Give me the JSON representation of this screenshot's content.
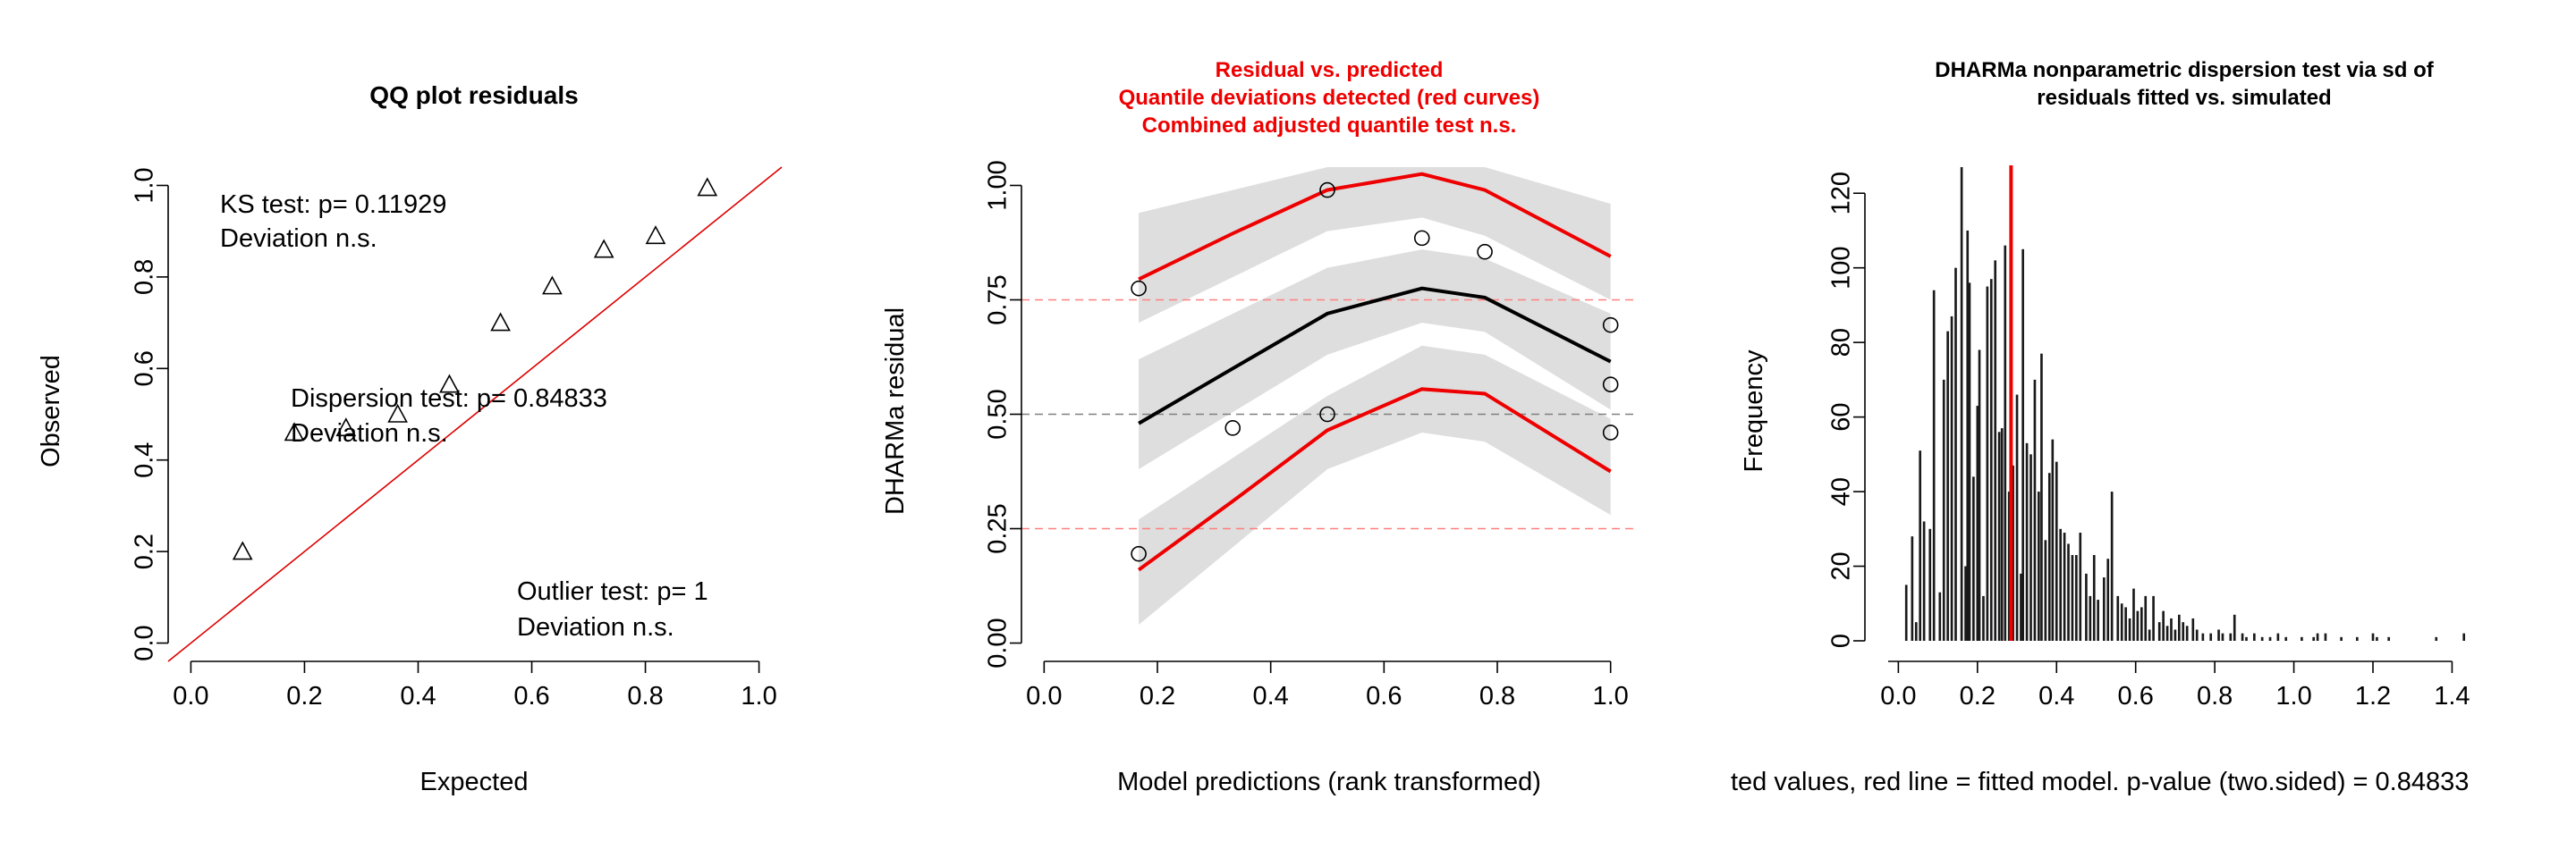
{
  "chart_data": [
    {
      "type": "scatter",
      "title": "QQ plot residuals",
      "xlabel": "Expected",
      "ylabel": "Observed",
      "xlim": [
        -0.04,
        1.04
      ],
      "ylim": [
        -0.04,
        1.04
      ],
      "xticks": [
        "0.0",
        "0.2",
        "0.4",
        "0.6",
        "0.8",
        "1.0"
      ],
      "yticks": [
        "0.0",
        "0.2",
        "0.4",
        "0.6",
        "0.8",
        "1.0"
      ],
      "points": [
        {
          "x": 0.091,
          "y": 0.2
        },
        {
          "x": 0.182,
          "y": 0.46
        },
        {
          "x": 0.273,
          "y": 0.47
        },
        {
          "x": 0.364,
          "y": 0.5
        },
        {
          "x": 0.455,
          "y": 0.565
        },
        {
          "x": 0.545,
          "y": 0.7
        },
        {
          "x": 0.636,
          "y": 0.78
        },
        {
          "x": 0.727,
          "y": 0.86
        },
        {
          "x": 0.818,
          "y": 0.89
        },
        {
          "x": 0.909,
          "y": 0.995
        }
      ],
      "reference_line": "y = x",
      "annotations": [
        {
          "lines": [
            "KS test: p= 0.11929",
            "Deviation  n.s."
          ]
        },
        {
          "lines": [
            "Dispersion test: p= 0.84833",
            "Deviation  n.s."
          ]
        },
        {
          "lines": [
            "Outlier test: p= 1",
            "Deviation  n.s."
          ]
        }
      ],
      "colors": {
        "points": "#000000",
        "line": "#dd0000"
      }
    },
    {
      "type": "line",
      "title_lines": [
        "Residual vs. predicted",
        "Quantile deviations detected (red curves)",
        "Combined adjusted quantile test n.s."
      ],
      "xlabel": "Model predictions (rank transformed)",
      "ylabel": "DHARMa residual",
      "xlim": [
        -0.04,
        1.04
      ],
      "ylim": [
        -0.04,
        1.04
      ],
      "xticks": [
        "0.0",
        "0.2",
        "0.4",
        "0.6",
        "0.8",
        "1.0"
      ],
      "yticks": [
        "0.00",
        "0.25",
        "0.50",
        "0.75",
        "1.00"
      ],
      "reference_lines": [
        0.25,
        0.5,
        0.75
      ],
      "x": [
        0.167,
        0.333,
        0.5,
        0.667,
        0.778,
        1.0
      ],
      "series": [
        {
          "values": [
            0.16,
            0.31,
            0.465,
            0.555,
            0.545,
            0.375
          ],
          "color": "#ee0000",
          "quantile": 0.25
        },
        {
          "values": [
            0.48,
            0.6,
            0.72,
            0.775,
            0.755,
            0.615
          ],
          "color": "#000000",
          "quantile": 0.5
        },
        {
          "values": [
            0.795,
            0.895,
            0.99,
            1.025,
            0.99,
            0.845
          ],
          "color": "#ee0000",
          "quantile": 0.75
        }
      ],
      "bands": [
        {
          "x": [
            0.167,
            0.5,
            0.667,
            0.778,
            1.0
          ],
          "lower": [
            0.04,
            0.38,
            0.46,
            0.44,
            0.28
          ],
          "upper": [
            0.27,
            0.54,
            0.65,
            0.63,
            0.49
          ]
        },
        {
          "x": [
            0.167,
            0.5,
            0.667,
            0.778,
            1.0
          ],
          "lower": [
            0.38,
            0.63,
            0.7,
            0.68,
            0.51
          ],
          "upper": [
            0.62,
            0.82,
            0.86,
            0.84,
            0.72
          ]
        },
        {
          "x": [
            0.167,
            0.5,
            0.667,
            0.778,
            1.0
          ],
          "lower": [
            0.7,
            0.9,
            0.93,
            0.89,
            0.75
          ],
          "upper": [
            0.94,
            1.12,
            1.12,
            1.1,
            0.96
          ]
        }
      ],
      "points": [
        {
          "x": 0.167,
          "y": 0.775
        },
        {
          "x": 0.167,
          "y": 0.195
        },
        {
          "x": 0.333,
          "y": 0.47
        },
        {
          "x": 0.5,
          "y": 0.99
        },
        {
          "x": 0.5,
          "y": 0.5
        },
        {
          "x": 0.667,
          "y": 0.885
        },
        {
          "x": 0.778,
          "y": 0.855
        },
        {
          "x": 1.0,
          "y": 0.695
        },
        {
          "x": 1.0,
          "y": 0.565
        },
        {
          "x": 1.0,
          "y": 0.46
        }
      ],
      "colors": {
        "title": "#ee0000",
        "band": "#dedede",
        "refline_outer": "#ff8080",
        "refline_mid": "#808080"
      }
    },
    {
      "type": "bar",
      "title_lines": [
        "DHARMa nonparametric dispersion test via sd of",
        "residuals fitted vs. simulated"
      ],
      "xlabel": "ted values, red line = fitted model. p-value (two.sided) = 0.84833",
      "ylabel": "Frequency",
      "xlim": [
        -0.028,
        1.442
      ],
      "ylim": [
        0,
        127
      ],
      "xticks": [
        "0.0",
        "0.2",
        "0.4",
        "0.6",
        "0.8",
        "1.0",
        "1.2",
        "1.4"
      ],
      "yticks": [
        "0",
        "20",
        "40",
        "60",
        "80",
        "100",
        "120"
      ],
      "observed_line": 0.285,
      "bar_width": 0.006,
      "histogram": [
        [
          0.02,
          15
        ],
        [
          0.035,
          28
        ],
        [
          0.045,
          5
        ],
        [
          0.055,
          51
        ],
        [
          0.065,
          32
        ],
        [
          0.08,
          30
        ],
        [
          0.09,
          94
        ],
        [
          0.105,
          13
        ],
        [
          0.115,
          70
        ],
        [
          0.125,
          83
        ],
        [
          0.135,
          87
        ],
        [
          0.145,
          100
        ],
        [
          0.16,
          127
        ],
        [
          0.17,
          20
        ],
        [
          0.175,
          110
        ],
        [
          0.18,
          96
        ],
        [
          0.19,
          44
        ],
        [
          0.2,
          63
        ],
        [
          0.205,
          78
        ],
        [
          0.215,
          12
        ],
        [
          0.225,
          95
        ],
        [
          0.235,
          97
        ],
        [
          0.245,
          102
        ],
        [
          0.255,
          56
        ],
        [
          0.262,
          57
        ],
        [
          0.27,
          106
        ],
        [
          0.28,
          40
        ],
        [
          0.29,
          47
        ],
        [
          0.3,
          66
        ],
        [
          0.31,
          18
        ],
        [
          0.315,
          105
        ],
        [
          0.325,
          53
        ],
        [
          0.335,
          50
        ],
        [
          0.345,
          70
        ],
        [
          0.355,
          40
        ],
        [
          0.362,
          77
        ],
        [
          0.372,
          27
        ],
        [
          0.382,
          45
        ],
        [
          0.39,
          54
        ],
        [
          0.4,
          48
        ],
        [
          0.41,
          30
        ],
        [
          0.42,
          29
        ],
        [
          0.43,
          26
        ],
        [
          0.44,
          23
        ],
        [
          0.45,
          23
        ],
        [
          0.46,
          29
        ],
        [
          0.475,
          18
        ],
        [
          0.485,
          12
        ],
        [
          0.495,
          23
        ],
        [
          0.505,
          11
        ],
        [
          0.52,
          17
        ],
        [
          0.53,
          22
        ],
        [
          0.54,
          40
        ],
        [
          0.555,
          12
        ],
        [
          0.565,
          10
        ],
        [
          0.575,
          9
        ],
        [
          0.585,
          6
        ],
        [
          0.595,
          14
        ],
        [
          0.605,
          8
        ],
        [
          0.615,
          9
        ],
        [
          0.625,
          12
        ],
        [
          0.635,
          3
        ],
        [
          0.645,
          12
        ],
        [
          0.66,
          5
        ],
        [
          0.67,
          8
        ],
        [
          0.68,
          4
        ],
        [
          0.69,
          6
        ],
        [
          0.7,
          3
        ],
        [
          0.71,
          7
        ],
        [
          0.72,
          5
        ],
        [
          0.73,
          4
        ],
        [
          0.745,
          6
        ],
        [
          0.755,
          3
        ],
        [
          0.77,
          2
        ],
        [
          0.79,
          2
        ],
        [
          0.81,
          3
        ],
        [
          0.82,
          2
        ],
        [
          0.84,
          2
        ],
        [
          0.85,
          7
        ],
        [
          0.87,
          2
        ],
        [
          0.88,
          1
        ],
        [
          0.9,
          2
        ],
        [
          0.92,
          1
        ],
        [
          0.94,
          1
        ],
        [
          0.96,
          2
        ],
        [
          0.98,
          1
        ],
        [
          1.02,
          1
        ],
        [
          1.05,
          1
        ],
        [
          1.06,
          2
        ],
        [
          1.08,
          2
        ],
        [
          1.12,
          1
        ],
        [
          1.16,
          1
        ],
        [
          1.2,
          2
        ],
        [
          1.21,
          1
        ],
        [
          1.24,
          1
        ],
        [
          1.36,
          1
        ],
        [
          1.43,
          2
        ]
      ],
      "colors": {
        "bars": "#1a1a1a",
        "line": "#ee0000"
      }
    }
  ]
}
